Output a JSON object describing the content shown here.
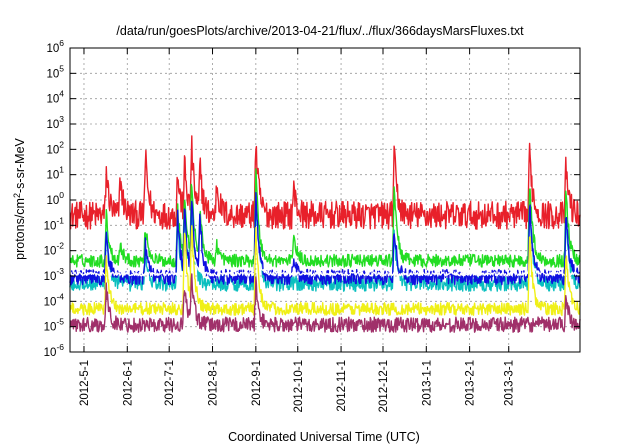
{
  "chart_data": {
    "type": "line",
    "title": "/data/run/goesPlots/archive/2013-04-21/flux/../flux/366daysMarsFluxes.txt",
    "xlabel": "Coordinated Universal Time (UTC)",
    "ylabel_base": "protons/cm",
    "ylabel_sup": "2",
    "ylabel_rest": "-s-sr-MeV",
    "y_scale": "log",
    "ylim": [
      1e-06,
      1000000.0
    ],
    "xlim": [
      "2012-04-21",
      "2013-04-21"
    ],
    "grid": true,
    "legend": "none",
    "y_ticks": [
      {
        "base": "10",
        "exp": "-6"
      },
      {
        "base": "10",
        "exp": "-5"
      },
      {
        "base": "10",
        "exp": "-4"
      },
      {
        "base": "10",
        "exp": "-3"
      },
      {
        "base": "10",
        "exp": "-2"
      },
      {
        "base": "10",
        "exp": "-1"
      },
      {
        "base": "10",
        "exp": "0"
      },
      {
        "base": "10",
        "exp": "1"
      },
      {
        "base": "10",
        "exp": "2"
      },
      {
        "base": "10",
        "exp": "3"
      },
      {
        "base": "10",
        "exp": "4"
      },
      {
        "base": "10",
        "exp": "5"
      },
      {
        "base": "10",
        "exp": "6"
      }
    ],
    "x_ticks": [
      {
        "label": "2012-5-1",
        "date": "2012-05-01"
      },
      {
        "label": "2012-6-1",
        "date": "2012-06-01"
      },
      {
        "label": "2012-7-1",
        "date": "2012-07-01"
      },
      {
        "label": "2012-8-1",
        "date": "2012-08-01"
      },
      {
        "label": "2012-9-1",
        "date": "2012-09-01"
      },
      {
        "label": "2012-10-1",
        "date": "2012-10-01"
      },
      {
        "label": "2012-11-1",
        "date": "2012-11-01"
      },
      {
        "label": "2012-12-1",
        "date": "2012-12-01"
      },
      {
        "label": "2013-1-1",
        "date": "2013-01-01"
      },
      {
        "label": "2013-2-1",
        "date": "2013-02-01"
      },
      {
        "label": "2013-3-1",
        "date": "2013-03-01"
      }
    ],
    "series": [
      {
        "color": "#e8202a",
        "baseline": 0.25,
        "noise_decades": 0.55,
        "events": [
          {
            "date": "2012-05-17",
            "peak": 15
          },
          {
            "date": "2012-05-27",
            "peak": 8
          },
          {
            "date": "2012-06-14",
            "peak": 60
          },
          {
            "date": "2012-07-07",
            "peak": 12
          },
          {
            "date": "2012-07-12",
            "peak": 30
          },
          {
            "date": "2012-07-17",
            "peak": 180
          },
          {
            "date": "2012-07-23",
            "peak": 25
          },
          {
            "date": "2012-08-04",
            "peak": 5
          },
          {
            "date": "2012-09-01",
            "peak": 180
          },
          {
            "date": "2012-09-28",
            "peak": 3
          },
          {
            "date": "2012-12-09",
            "peak": 70
          },
          {
            "date": "2013-03-16",
            "peak": 100
          },
          {
            "date": "2013-04-11",
            "peak": 25
          }
        ]
      },
      {
        "color": "#22dd22",
        "baseline": 0.004,
        "noise_decades": 0.25,
        "events": [
          {
            "date": "2012-05-17",
            "peak": 0.3
          },
          {
            "date": "2012-05-27",
            "peak": 0.02
          },
          {
            "date": "2012-06-14",
            "peak": 0.1
          },
          {
            "date": "2012-07-07",
            "peak": 0.6
          },
          {
            "date": "2012-07-12",
            "peak": 2
          },
          {
            "date": "2012-07-17",
            "peak": 10
          },
          {
            "date": "2012-07-23",
            "peak": 0.5
          },
          {
            "date": "2012-08-04",
            "peak": 0.02
          },
          {
            "date": "2012-09-01",
            "peak": 20
          },
          {
            "date": "2012-09-28",
            "peak": 0.05
          },
          {
            "date": "2012-12-09",
            "peak": 5
          },
          {
            "date": "2013-03-16",
            "peak": 8
          },
          {
            "date": "2013-04-11",
            "peak": 3
          }
        ]
      },
      {
        "color": "#0abfbf",
        "baseline": 0.0005,
        "noise_decades": 0.3,
        "events": [
          {
            "date": "2012-05-17",
            "peak": 0.1
          },
          {
            "date": "2012-06-14",
            "peak": 0.01
          },
          {
            "date": "2012-07-07",
            "peak": 0.2
          },
          {
            "date": "2012-07-12",
            "peak": 0.5
          },
          {
            "date": "2012-07-17",
            "peak": 1
          },
          {
            "date": "2012-09-01",
            "peak": 2
          },
          {
            "date": "2012-12-09",
            "peak": 0.05
          },
          {
            "date": "2013-03-16",
            "peak": 1
          },
          {
            "date": "2013-04-11",
            "peak": 0.6
          }
        ]
      },
      {
        "color": "#1010e0",
        "baseline": 0.0009,
        "noise_decades": 0.3,
        "events": [
          {
            "date": "2012-05-17",
            "peak": 0.05
          },
          {
            "date": "2012-06-14",
            "peak": 0.02
          },
          {
            "date": "2012-07-07",
            "peak": 0.3
          },
          {
            "date": "2012-07-12",
            "peak": 0.6
          },
          {
            "date": "2012-07-17",
            "peak": 2
          },
          {
            "date": "2012-07-23",
            "peak": 0.3
          },
          {
            "date": "2012-09-01",
            "peak": 3
          },
          {
            "date": "2012-09-28",
            "peak": 0.005
          },
          {
            "date": "2012-12-09",
            "peak": 0.1
          },
          {
            "date": "2013-03-16",
            "peak": 1
          },
          {
            "date": "2013-04-11",
            "peak": 0.5
          }
        ]
      },
      {
        "color": "#ffffff",
        "baseline": 0.0012,
        "noise_decades": 0.08,
        "events": [
          {
            "date": "2012-07-17",
            "peak": 0.05
          },
          {
            "date": "2012-09-01",
            "peak": 0.05
          },
          {
            "date": "2013-03-16",
            "peak": 0.01
          }
        ]
      },
      {
        "color": "#f0f018",
        "baseline": 5e-05,
        "noise_decades": 0.25,
        "events": [
          {
            "date": "2012-05-17",
            "peak": 0.005
          },
          {
            "date": "2012-07-12",
            "peak": 0.1
          },
          {
            "date": "2012-07-17",
            "peak": 0.2
          },
          {
            "date": "2012-09-01",
            "peak": 0.1
          },
          {
            "date": "2013-03-16",
            "peak": 0.05
          },
          {
            "date": "2013-04-11",
            "peak": 0.01
          }
        ]
      },
      {
        "color": "#a0306a",
        "baseline": 1.2e-05,
        "noise_decades": 0.3,
        "events": [
          {
            "date": "2012-05-17",
            "peak": 0.0003
          },
          {
            "date": "2012-07-12",
            "peak": 0.0005
          },
          {
            "date": "2012-07-17",
            "peak": 0.001
          },
          {
            "date": "2012-09-01",
            "peak": 0.0005
          },
          {
            "date": "2013-04-11",
            "peak": 0.0002
          }
        ]
      }
    ]
  }
}
